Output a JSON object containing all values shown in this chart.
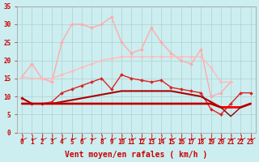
{
  "xlabel": "Vent moyen/en rafales ( km/h )",
  "xlim": [
    -0.5,
    23.5
  ],
  "ylim": [
    0,
    35
  ],
  "yticks": [
    0,
    5,
    10,
    15,
    20,
    25,
    30,
    35
  ],
  "xticks": [
    0,
    1,
    2,
    3,
    4,
    5,
    6,
    7,
    8,
    9,
    10,
    11,
    12,
    13,
    14,
    15,
    16,
    17,
    18,
    19,
    20,
    21,
    22,
    23
  ],
  "background_color": "#cceef0",
  "grid_color": "#b0d0d0",
  "series": [
    {
      "y": [
        15.5,
        19,
        15,
        14,
        25,
        30,
        30,
        29,
        30,
        32,
        25,
        22,
        23,
        29,
        25,
        22,
        20,
        19,
        23,
        10,
        11,
        14
      ],
      "x": [
        0,
        1,
        2,
        3,
        4,
        5,
        6,
        7,
        8,
        9,
        10,
        11,
        12,
        13,
        14,
        15,
        16,
        17,
        18,
        19,
        20,
        21
      ],
      "color": "#ffaaaa",
      "linewidth": 1.0,
      "marker": "D",
      "markersize": 2.0
    },
    {
      "y": [
        15.5,
        15,
        15,
        15,
        16,
        17,
        18,
        19,
        20,
        20.5,
        21,
        21,
        21,
        21,
        21,
        21,
        21,
        21,
        21,
        18,
        14,
        14
      ],
      "x": [
        0,
        1,
        2,
        3,
        4,
        5,
        6,
        7,
        8,
        9,
        10,
        11,
        12,
        13,
        14,
        15,
        16,
        17,
        18,
        19,
        20,
        21
      ],
      "color": "#ffbbbb",
      "linewidth": 1.0,
      "marker": "D",
      "markersize": 2.0
    },
    {
      "y": [
        9.5,
        8,
        8,
        8.5,
        11,
        12,
        13,
        14,
        15,
        12,
        16,
        15,
        14.5,
        14,
        14.5,
        12.5,
        12,
        11.5,
        11,
        6.5,
        5,
        8,
        11,
        11
      ],
      "x": [
        0,
        1,
        2,
        3,
        4,
        5,
        6,
        7,
        8,
        9,
        10,
        11,
        12,
        13,
        14,
        15,
        16,
        17,
        18,
        19,
        20,
        21,
        22,
        23
      ],
      "color": "#dd2222",
      "linewidth": 1.0,
      "marker": "D",
      "markersize": 2.0
    },
    {
      "y": [
        9.5,
        8,
        8,
        8,
        8.5,
        9,
        9.5,
        10,
        10.5,
        11,
        11.5,
        11.5,
        11.5,
        11.5,
        11.5,
        11.5,
        11,
        10.5,
        10,
        8.5,
        7,
        7,
        7,
        8
      ],
      "x": [
        0,
        1,
        2,
        3,
        4,
        5,
        6,
        7,
        8,
        9,
        10,
        11,
        12,
        13,
        14,
        15,
        16,
        17,
        18,
        19,
        20,
        21,
        22,
        23
      ],
      "color": "#aa0000",
      "linewidth": 1.5,
      "marker": null,
      "markersize": 0
    },
    {
      "y": [
        8,
        8,
        8,
        8,
        8,
        8,
        8,
        8,
        8,
        8,
        8,
        8,
        8,
        8,
        8,
        8,
        8,
        8,
        8,
        8,
        7,
        7,
        7,
        8
      ],
      "x": [
        0,
        1,
        2,
        3,
        4,
        5,
        6,
        7,
        8,
        9,
        10,
        11,
        12,
        13,
        14,
        15,
        16,
        17,
        18,
        19,
        20,
        21,
        22,
        23
      ],
      "color": "#ff0000",
      "linewidth": 2.0,
      "marker": null,
      "markersize": 0
    },
    {
      "y": [
        8,
        8,
        8,
        8,
        8,
        8,
        8,
        8,
        8,
        8,
        8,
        8,
        8,
        8,
        8,
        8,
        8,
        8,
        8,
        8,
        7,
        4.5,
        7,
        8
      ],
      "x": [
        0,
        1,
        2,
        3,
        4,
        5,
        6,
        7,
        8,
        9,
        10,
        11,
        12,
        13,
        14,
        15,
        16,
        17,
        18,
        19,
        20,
        21,
        22,
        23
      ],
      "color": "#880000",
      "linewidth": 1.0,
      "marker": null,
      "markersize": 0
    }
  ],
  "tick_label_fontsize": 5.5,
  "xlabel_fontsize": 7.0,
  "tick_color": "#cc0000"
}
